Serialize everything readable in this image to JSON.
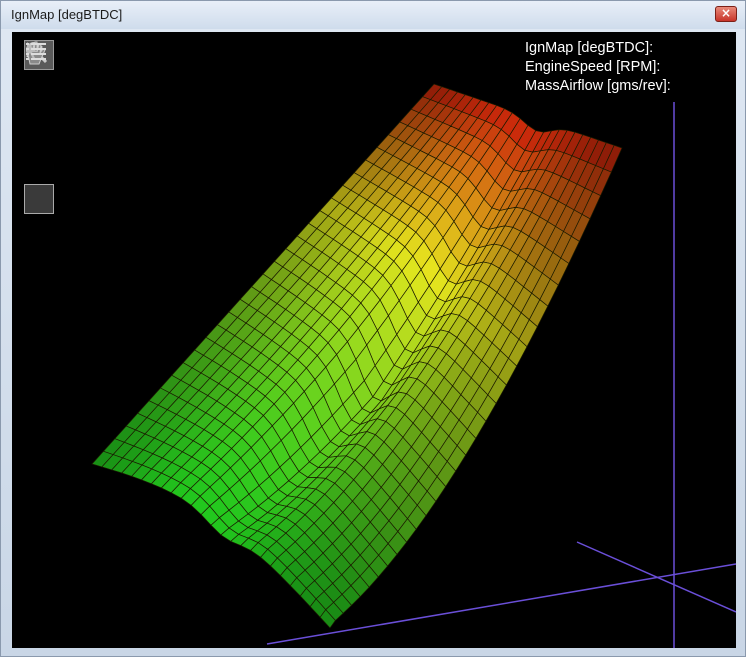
{
  "window": {
    "title": "IgnMap [degBTDC]",
    "close_icon": "close-icon"
  },
  "toolbar": {
    "tools": [
      {
        "icon": "rotate-icon",
        "active": true
      },
      {
        "icon": "zoom-icon",
        "active": false
      },
      {
        "icon": "pan-hand-icon",
        "active": false
      },
      {
        "icon": "pointer-icon",
        "active": false
      },
      {
        "icon": "list-icon",
        "active": false
      }
    ]
  },
  "plot": {
    "readout": {
      "value_label": "IgnMap [degBTDC]:",
      "x_label": "EngineSpeed [RPM]:",
      "y_label": "MassAirflow [gms/rev]:"
    },
    "colors": {
      "background": "#000000",
      "axis": "#6a4fd8",
      "mesh": "#1a1a00",
      "low": "#22c81e",
      "mid": "#e6e61e",
      "high": "#c81e0a"
    }
  }
}
